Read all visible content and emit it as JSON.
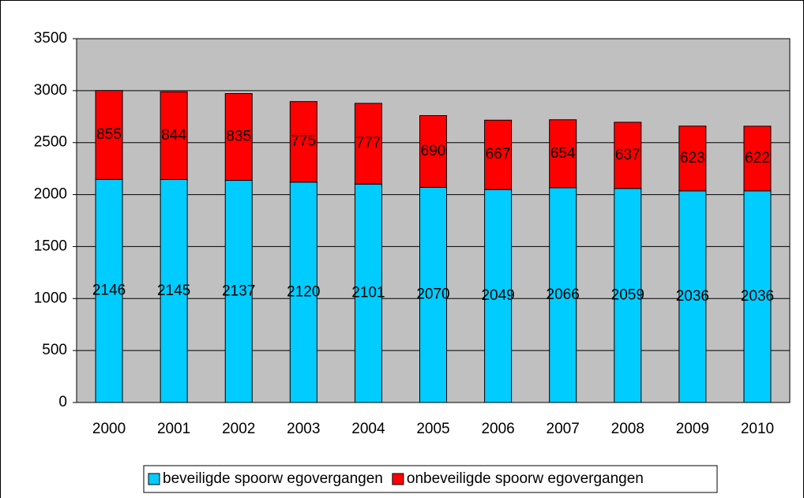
{
  "chart_data": {
    "type": "stacked_bar",
    "categories": [
      "2000",
      "2001",
      "2002",
      "2003",
      "2004",
      "2005",
      "2006",
      "2007",
      "2008",
      "2009",
      "2010"
    ],
    "series": [
      {
        "name": "beveiligde spoorw egovergangen",
        "color": "#00ccff",
        "values": [
          2146,
          2145,
          2137,
          2120,
          2101,
          2070,
          2049,
          2066,
          2059,
          2036,
          2036
        ]
      },
      {
        "name": "onbeveiligde spoorw egovergangen",
        "color": "#ff0000",
        "values": [
          855,
          844,
          835,
          775,
          777,
          690,
          667,
          654,
          637,
          623,
          622
        ]
      }
    ],
    "ylim": [
      0,
      3500
    ],
    "yticks": [
      0,
      500,
      1000,
      1500,
      2000,
      2500,
      3000,
      3500
    ],
    "grid": true,
    "legend": "bottom"
  }
}
